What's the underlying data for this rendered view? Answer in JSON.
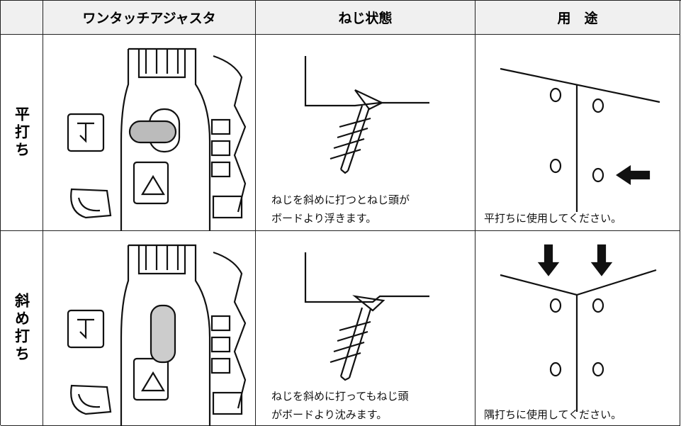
{
  "header": {
    "columns": [
      "",
      "ワンタッチアジャスタ",
      "ねじ状態",
      "用　途"
    ]
  },
  "rows": [
    {
      "label": "平打ち",
      "caption": [
        "ねじを斜めに打つとねじ頭が",
        "ボードより浮きます。"
      ],
      "usage": "平打ちに使用してください。"
    },
    {
      "label": "斜め打ち",
      "caption": [
        "ねじを斜めに打ってもねじ頭",
        "がボードより沈みます。"
      ],
      "usage": "隅打ちに使用してください。"
    }
  ]
}
